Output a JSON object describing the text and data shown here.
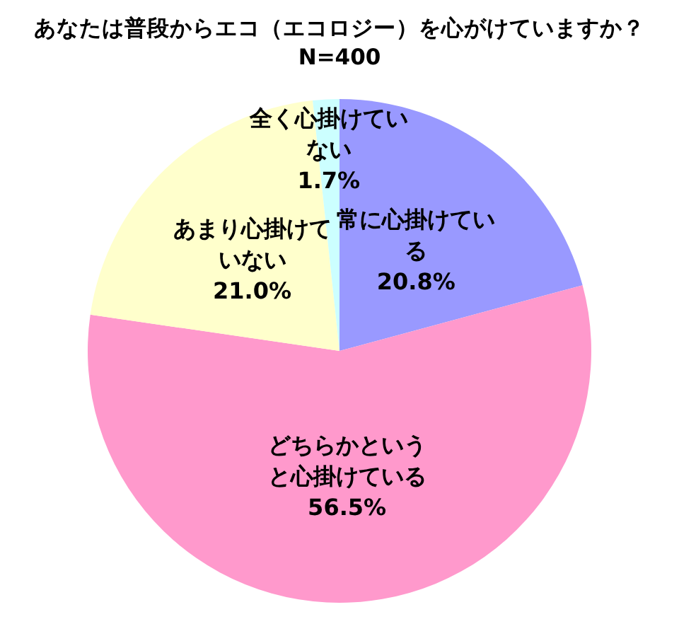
{
  "chart_data": {
    "type": "pie",
    "title": "あなたは普段からエコ（エコロジー）を心がけていますか？",
    "subtitle": "N=400",
    "categories": [
      "常に心掛けている",
      "どちらかというと心掛けている",
      "あまり心掛けていない",
      "全く心掛けていない"
    ],
    "values": [
      20.8,
      56.5,
      21.0,
      1.7
    ],
    "colors": [
      "#9999ff",
      "#ff99cc",
      "#ffffcc",
      "#ccffff"
    ],
    "value_labels": [
      "20.8%",
      "56.5%",
      "21.0%",
      "1.7%"
    ]
  }
}
